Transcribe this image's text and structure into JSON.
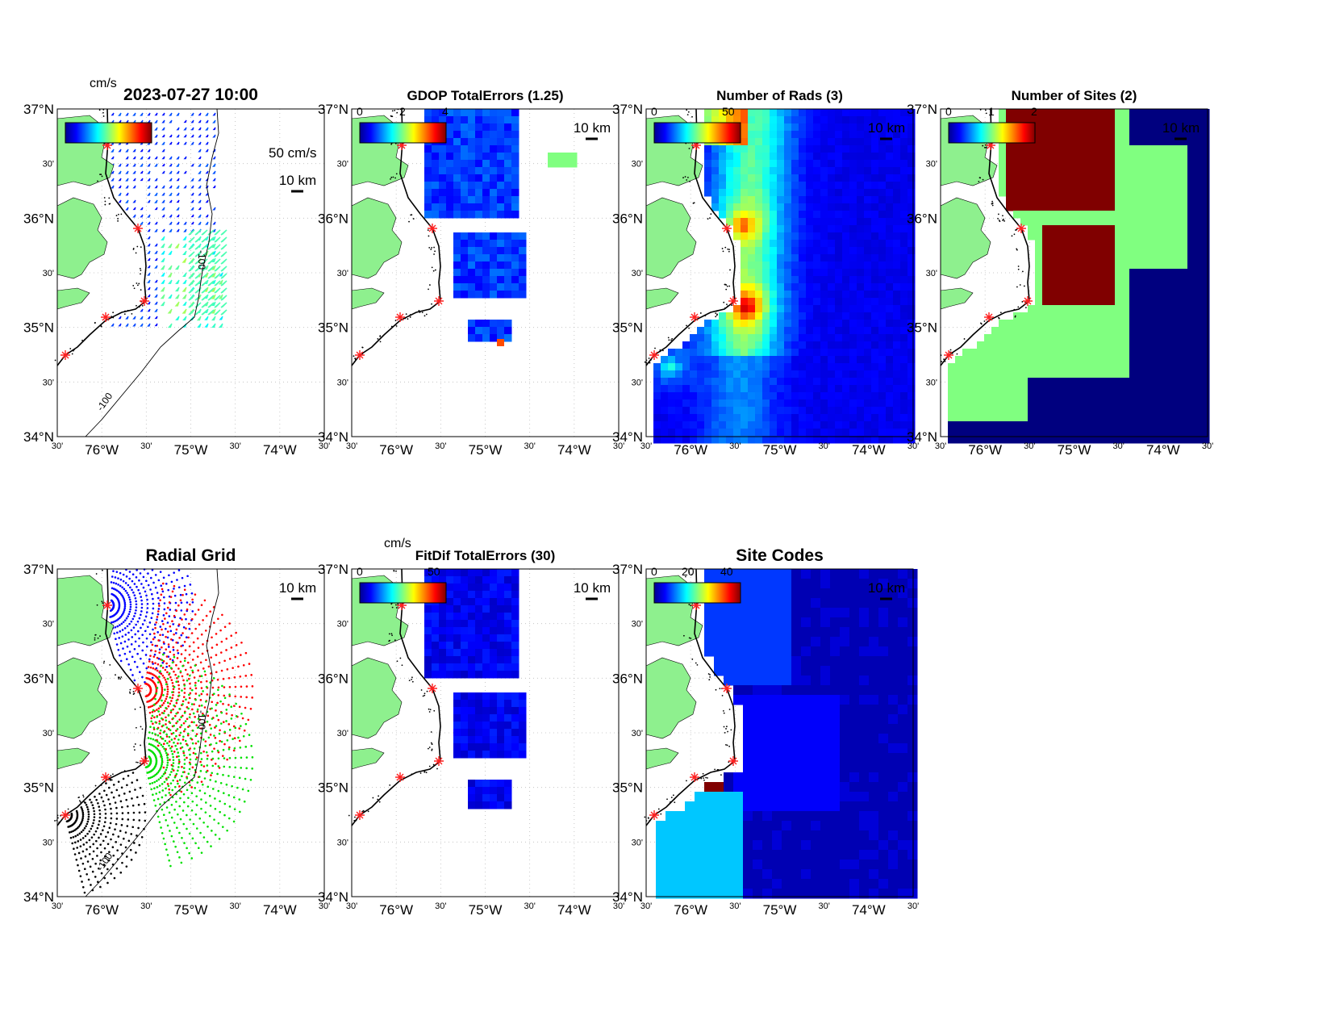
{
  "figure": {
    "timestamp": "2023-07-27 10:00",
    "lat_labels": [
      "37°N",
      "30'",
      "36°N",
      "30'",
      "35°N",
      "30'",
      "34°N"
    ],
    "lon_labels": [
      "30'",
      "76°W",
      "30'",
      "75°W",
      "30'",
      "74°W",
      "30'"
    ],
    "scale_label": "10 km",
    "colors": {
      "land": "#8ef08e",
      "ocean_deep": "#00007f",
      "site_marker": "#ff2020",
      "grid": "#bbbbbb"
    }
  },
  "panels": [
    {
      "id": "total-vectors",
      "title": "2023-07-27 10:00",
      "colorbar_unit": "cm/s",
      "colorbar_ticks": [],
      "overlap_text": "",
      "vector_scale_label": "50 cm/s",
      "isobath_label": "-100",
      "isobath_label2": "-100"
    },
    {
      "id": "gdop-errors",
      "title": "GDOP TotalErrors (1.25)",
      "colorbar_unit": "",
      "colorbar_ticks": [
        "0",
        "2",
        "4"
      ]
    },
    {
      "id": "number-of-rads",
      "title": "Number of Rads (3)",
      "colorbar_unit": "",
      "colorbar_ticks": [
        "0",
        "50"
      ]
    },
    {
      "id": "number-of-sites",
      "title": "Number of Sites (2)",
      "colorbar_unit": "",
      "colorbar_ticks": [
        "0",
        "1",
        "2"
      ]
    },
    {
      "id": "radial-grid",
      "title": "Radial Grid",
      "colorbar_unit": "",
      "colorbar_ticks": [],
      "isobath_label": "-100",
      "isobath_label2": "-100"
    },
    {
      "id": "fitdif-errors",
      "title": "FitDif TotalErrors (30)",
      "colorbar_unit": "cm/s",
      "colorbar_ticks": [
        "0",
        "50"
      ]
    },
    {
      "id": "site-codes",
      "title": "Site Codes",
      "colorbar_unit": "",
      "colorbar_ticks": [
        "0",
        "20",
        "40"
      ]
    }
  ]
}
